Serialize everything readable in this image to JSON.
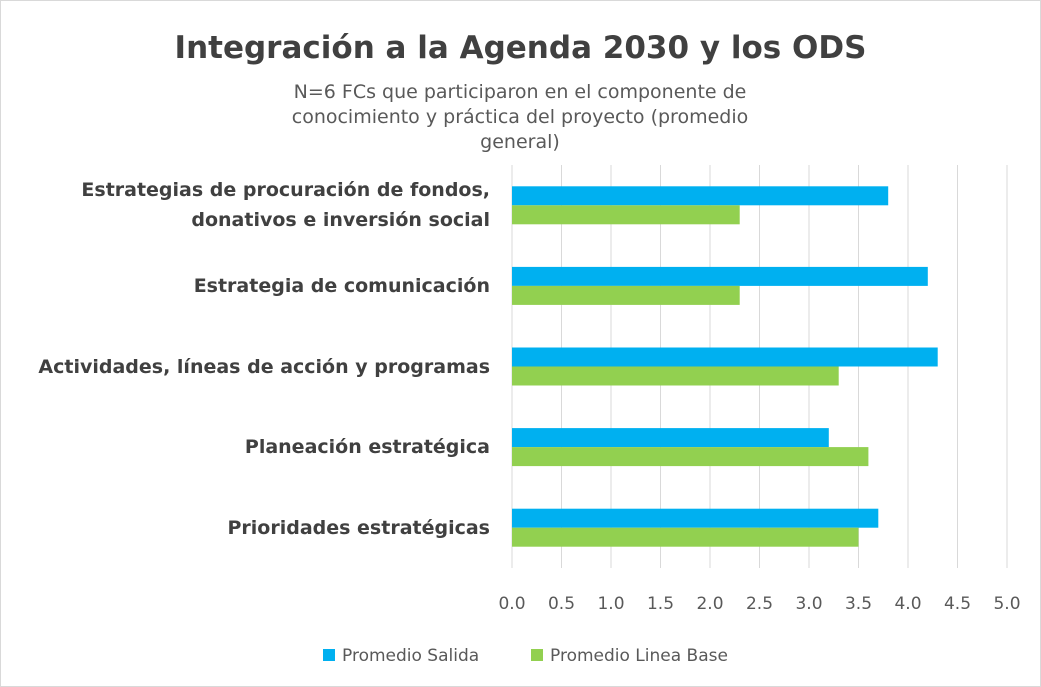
{
  "chart_data": {
    "type": "bar",
    "orientation": "horizontal",
    "title": "Integración a la Agenda 2030 y los ODS",
    "subtitle": "N=6 FCs que participaron en el componente de conocimiento y práctica del proyecto (promedio general)",
    "categories": [
      "Estrategias de procuración de fondos, donativos e inversión social",
      "Estrategia de comunicación",
      "Actividades, líneas de acción y programas",
      "Planeación estratégica",
      "Prioridades estratégicas"
    ],
    "series": [
      {
        "name": "Promedio Salida",
        "color": "#00b0f0",
        "values": [
          3.8,
          4.2,
          4.3,
          3.2,
          3.7
        ]
      },
      {
        "name": "Promedio Linea Base",
        "color": "#92d050",
        "values": [
          2.3,
          2.3,
          3.3,
          3.6,
          3.5
        ]
      }
    ],
    "xlim": [
      0,
      5
    ],
    "xticks": [
      {
        "value": 0,
        "label": "0.0"
      },
      0.5,
      {
        "value": 1,
        "label": "1.0"
      },
      1.5,
      {
        "value": 2,
        "label": "2.0"
      },
      2.5,
      {
        "value": 3,
        "label": "3.0"
      },
      3.5,
      {
        "value": 4,
        "label": "4.0"
      },
      4.5,
      {
        "value": 5,
        "label": "5.0"
      }
    ],
    "grid": true,
    "legend": "bottom"
  }
}
